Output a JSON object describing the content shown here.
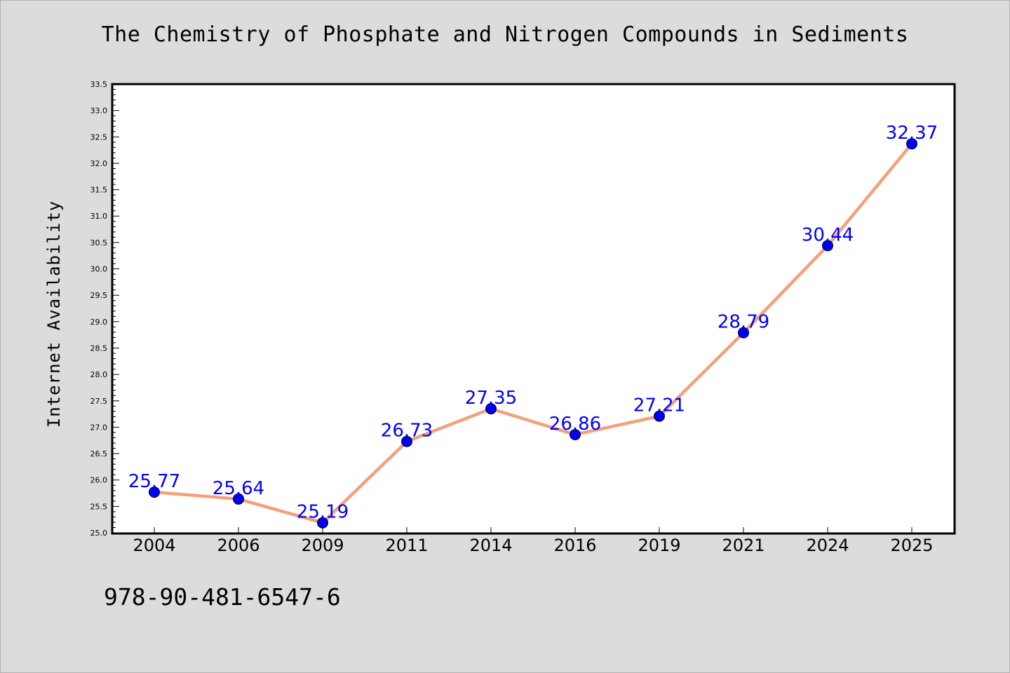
{
  "chart_data": {
    "type": "line",
    "title": "The Chemistry of Phosphate and Nitrogen Compounds in Sediments",
    "xlabel": "",
    "ylabel": "Internet Availability",
    "categories": [
      "2004",
      "2006",
      "2009",
      "2011",
      "2014",
      "2016",
      "2019",
      "2021",
      "2024",
      "2025"
    ],
    "series": [
      {
        "values": [
          25.77,
          25.64,
          25.19,
          26.73,
          27.35,
          26.86,
          27.21,
          28.79,
          30.44,
          32.37
        ],
        "line_color": "#f4a07a",
        "marker_color": "#0000ee"
      }
    ],
    "data_labels": [
      "25.77",
      "25.64",
      "25.19",
      "26.73",
      "27.35",
      "26.86",
      "27.21",
      "28.79",
      "30.44",
      "32.37"
    ],
    "ylim": [
      25.0,
      33.5
    ],
    "y_ticks": [
      "25.0",
      "25.5",
      "26.0",
      "26.5",
      "27.0",
      "27.5",
      "28.0",
      "28.5",
      "29.0",
      "29.5",
      "30.0",
      "30.5",
      "31.0",
      "31.5",
      "32.0",
      "32.5",
      "33.0",
      "33.5"
    ],
    "grid": false,
    "legend": "none",
    "label_color": "#0000ff"
  },
  "footer": {
    "isbn": "978-90-481-6547-6"
  }
}
